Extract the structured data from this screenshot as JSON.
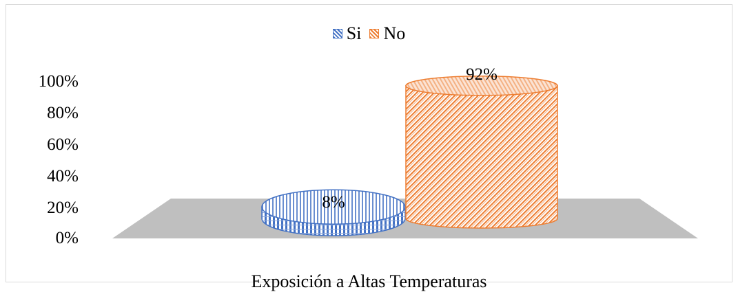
{
  "chart_data": {
    "type": "bar",
    "style": "3d-cylinder",
    "categories": [
      "Exposición a Altas Temperaturas"
    ],
    "series": [
      {
        "name": "Si",
        "values": [
          8
        ],
        "color": "#4472c4",
        "label": "8%"
      },
      {
        "name": "No",
        "values": [
          92
        ],
        "color": "#ed7d31",
        "label": "92%"
      }
    ],
    "xlabel": "Exposición a Altas Temperaturas",
    "yticks": [
      "100%",
      "80%",
      "60%",
      "40%",
      "20%",
      "0%"
    ],
    "ylim": [
      0,
      100
    ],
    "legend_position": "top",
    "grid": false,
    "floor_color": "#bfbfbf"
  }
}
